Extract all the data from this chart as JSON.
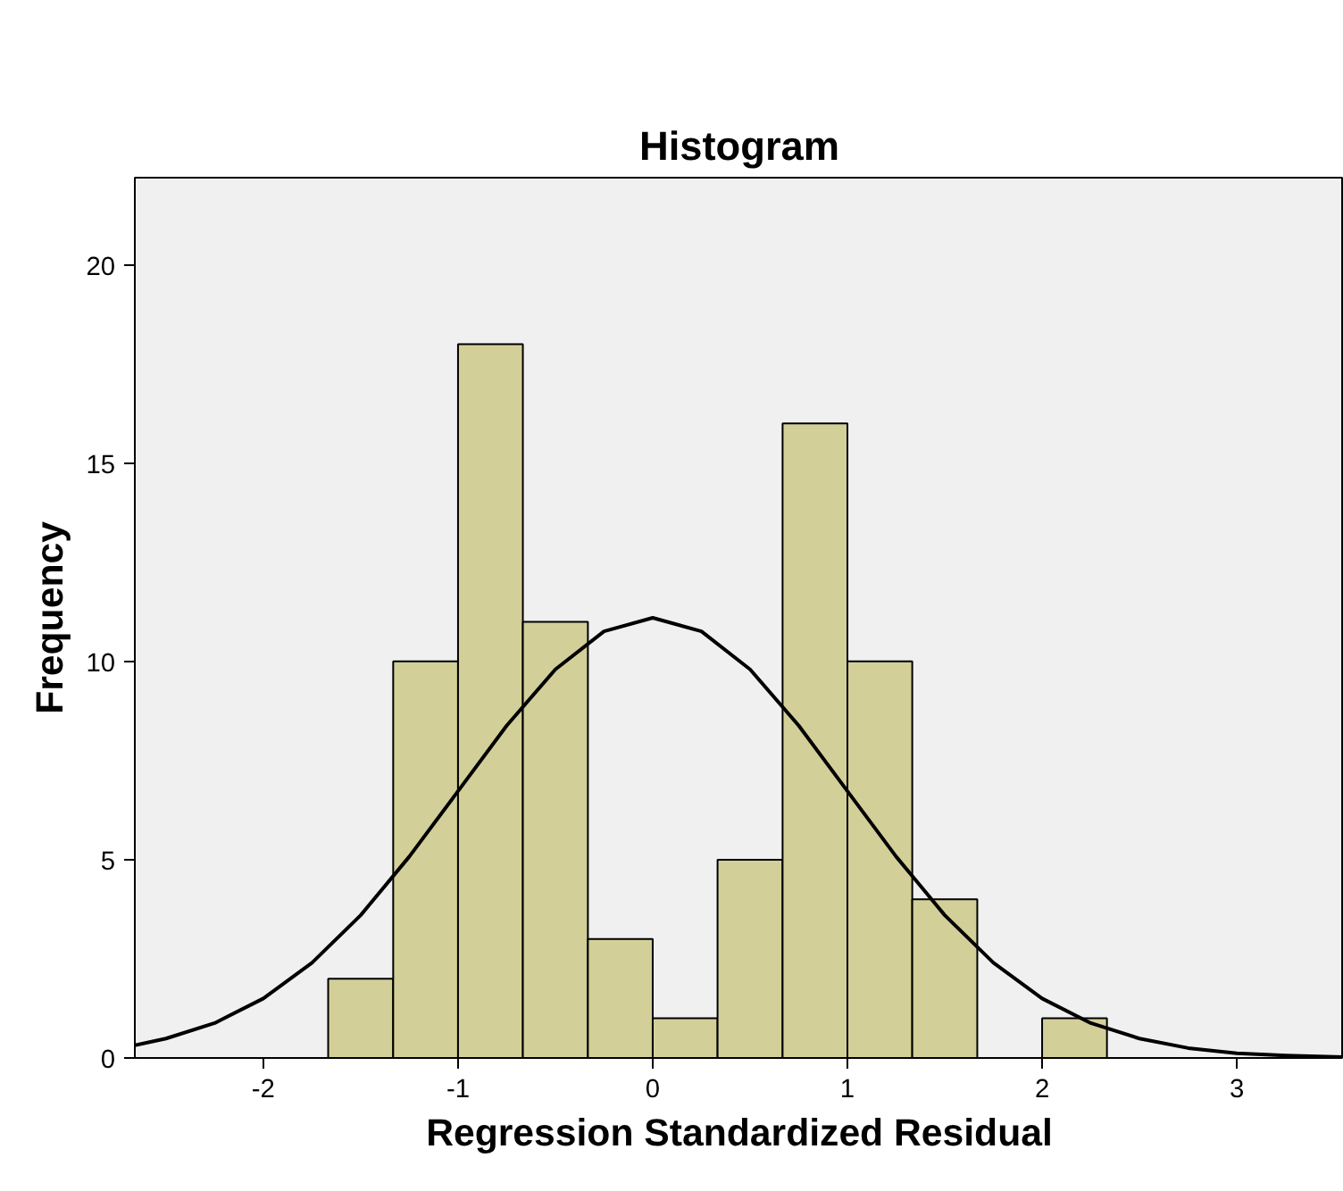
{
  "chart_data": {
    "type": "histogram",
    "title": "Histogram",
    "xlabel": "Regression Standardized Residual",
    "ylabel": "Frequency",
    "bins": [
      -1.667,
      -1.333,
      -1.0,
      -0.667,
      -0.333,
      0.0,
      0.333,
      0.667,
      1.0,
      1.333,
      1.667,
      2.0,
      2.333
    ],
    "values": [
      2,
      10,
      18,
      11,
      3,
      1,
      5,
      16,
      10,
      4,
      0,
      1
    ],
    "color": "#d3cf98",
    "series": [
      {
        "type": "line",
        "color": "#000000",
        "x": [
          -2.66,
          -2.5,
          -2.25,
          -2.0,
          -1.75,
          -1.5,
          -1.25,
          -1.0,
          -0.75,
          -0.5,
          -0.25,
          0.0,
          0.25,
          0.5,
          0.75,
          1.0,
          1.25,
          1.5,
          1.75,
          2.0,
          2.25,
          2.5,
          2.75,
          3.0,
          3.25,
          3.55
        ],
        "values": [
          0.32,
          0.49,
          0.88,
          1.5,
          2.4,
          3.6,
          5.08,
          6.73,
          8.38,
          9.8,
          10.76,
          11.1,
          10.76,
          9.8,
          8.38,
          6.73,
          5.08,
          3.6,
          2.4,
          1.5,
          0.88,
          0.49,
          0.25,
          0.12,
          0.06,
          0.02
        ]
      }
    ],
    "xlim": [
      -2.66,
      3.55
    ],
    "ylim": [
      0,
      22.2
    ],
    "xticks": [
      -2,
      -1,
      0,
      1,
      2,
      3
    ],
    "yticks": [
      0,
      5,
      10,
      15,
      20
    ],
    "grid": false
  }
}
